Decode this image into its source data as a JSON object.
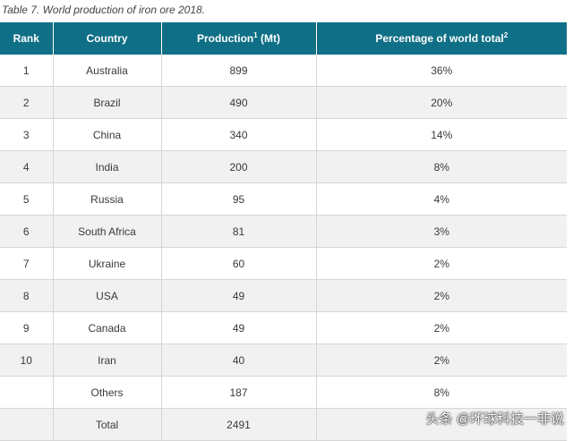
{
  "caption": "Table 7. World production of iron ore 2018.",
  "headers": {
    "rank": "Rank",
    "country": "Country",
    "production": "Production",
    "production_sup": "1",
    "production_unit": " (Mt)",
    "percentage": "Percentage of world total",
    "percentage_sup": "2"
  },
  "rows": [
    {
      "rank": "1",
      "country": "Australia",
      "production": "899",
      "percentage": "36%"
    },
    {
      "rank": "2",
      "country": "Brazil",
      "production": "490",
      "percentage": "20%"
    },
    {
      "rank": "3",
      "country": "China",
      "production": "340",
      "percentage": "14%"
    },
    {
      "rank": "4",
      "country": "India",
      "production": "200",
      "percentage": "8%"
    },
    {
      "rank": "5",
      "country": "Russia",
      "production": "95",
      "percentage": "4%"
    },
    {
      "rank": "6",
      "country": "South Africa",
      "production": "81",
      "percentage": "3%"
    },
    {
      "rank": "7",
      "country": "Ukraine",
      "production": "60",
      "percentage": "2%"
    },
    {
      "rank": "8",
      "country": "USA",
      "production": "49",
      "percentage": "2%"
    },
    {
      "rank": "9",
      "country": "Canada",
      "production": "49",
      "percentage": "2%"
    },
    {
      "rank": "10",
      "country": "Iran",
      "production": "40",
      "percentage": "2%"
    },
    {
      "rank": "",
      "country": "Others",
      "production": "187",
      "percentage": "8%"
    },
    {
      "rank": "",
      "country": "Total",
      "production": "2491",
      "percentage": ""
    }
  ],
  "watermark": "头条 @环球科技一非说",
  "colors": {
    "header_bg": "#0f6f86",
    "header_text": "#ffffff",
    "row_alt_bg": "#f1f1f1"
  }
}
